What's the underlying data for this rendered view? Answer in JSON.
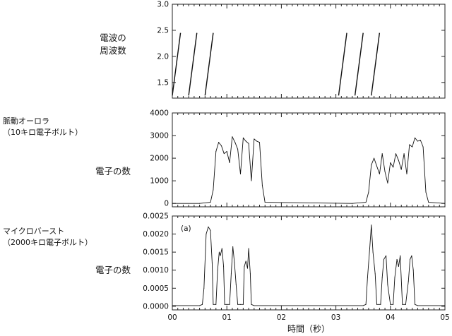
{
  "chart_data": [
    {
      "type": "line",
      "side_label_lines": [
        "電波の",
        "周波数"
      ],
      "ylim": [
        1.2,
        3.0
      ],
      "yticks": [
        1.5,
        2.0,
        2.5,
        3.0
      ],
      "ytick_labels": [
        "1.5",
        "2.0",
        "2.5",
        "3.0"
      ],
      "xlim": [
        0,
        5
      ],
      "segments": [
        {
          "x": [
            0.0,
            0.15
          ],
          "y": [
            1.25,
            2.45
          ]
        },
        {
          "x": [
            0.3,
            0.45
          ],
          "y": [
            1.25,
            2.45
          ]
        },
        {
          "x": [
            0.6,
            0.75
          ],
          "y": [
            1.25,
            2.45
          ]
        },
        {
          "x": [
            3.05,
            3.2
          ],
          "y": [
            1.25,
            2.45
          ]
        },
        {
          "x": [
            3.35,
            3.5
          ],
          "y": [
            1.25,
            2.45
          ]
        },
        {
          "x": [
            3.65,
            3.8
          ],
          "y": [
            1.25,
            2.45
          ]
        }
      ]
    },
    {
      "type": "line",
      "title_lines": [
        "脈動オーロラ",
        "（10キロ電子ボルト）"
      ],
      "side_label": "電子の数",
      "ylim": [
        -150,
        4000
      ],
      "yticks": [
        0,
        1000,
        2000,
        3000,
        4000
      ],
      "ytick_labels": [
        "0",
        "1000",
        "2000",
        "3000",
        "4000"
      ],
      "xlim": [
        0,
        5
      ],
      "x": [
        0.0,
        0.5,
        0.7,
        0.75,
        0.8,
        0.85,
        0.9,
        0.95,
        1.0,
        1.05,
        1.1,
        1.15,
        1.2,
        1.25,
        1.3,
        1.35,
        1.4,
        1.45,
        1.5,
        1.55,
        1.6,
        1.65,
        1.7,
        3.3,
        3.55,
        3.6,
        3.65,
        3.7,
        3.75,
        3.8,
        3.85,
        3.9,
        3.95,
        4.0,
        4.05,
        4.1,
        4.15,
        4.2,
        4.25,
        4.3,
        4.35,
        4.4,
        4.45,
        4.5,
        4.55,
        4.6,
        4.65,
        4.7,
        5.0
      ],
      "y": [
        0,
        0,
        50,
        600,
        2300,
        2700,
        2550,
        2200,
        2300,
        1800,
        2950,
        2700,
        2400,
        1300,
        2900,
        2750,
        2650,
        1000,
        2850,
        2750,
        2700,
        800,
        50,
        0,
        50,
        500,
        1700,
        2000,
        1650,
        1300,
        2200,
        1400,
        900,
        1800,
        1600,
        2200,
        1900,
        1500,
        2200,
        1300,
        2600,
        2500,
        2900,
        2750,
        2800,
        2500,
        500,
        50,
        0
      ]
    },
    {
      "type": "line",
      "title_lines": [
        "マイクロバースト",
        "（2000キロ電子ボルト）"
      ],
      "side_label": "電子の数",
      "annotation": "(a)",
      "ylim": [
        -0.0001,
        0.0025
      ],
      "yticks": [
        0.0,
        0.0005,
        0.001,
        0.0015,
        0.002,
        0.0025
      ],
      "ytick_labels": [
        "0.0000",
        "0.0005",
        "0.0010",
        "0.0015",
        "0.0020",
        "0.0025"
      ],
      "xlim": [
        0,
        5
      ],
      "x": [
        0.0,
        0.5,
        0.55,
        0.58,
        0.62,
        0.66,
        0.7,
        0.73,
        0.75,
        0.8,
        0.83,
        0.86,
        0.88,
        0.91,
        0.94,
        0.96,
        1.0,
        1.05,
        1.08,
        1.11,
        1.14,
        1.17,
        1.2,
        1.25,
        1.3,
        1.32,
        1.35,
        1.38,
        1.4,
        1.43,
        1.45,
        1.5,
        3.5,
        3.55,
        3.58,
        3.62,
        3.65,
        3.68,
        3.72,
        3.75,
        3.82,
        3.85,
        3.88,
        3.92,
        3.95,
        4.0,
        4.05,
        4.08,
        4.12,
        4.15,
        4.18,
        4.22,
        4.28,
        4.33,
        4.36,
        4.39,
        4.42,
        4.45,
        4.5,
        5.0
      ],
      "y": [
        2e-05,
        2e-05,
        5e-05,
        0.0005,
        0.002,
        0.0022,
        0.0021,
        0.0012,
        5e-05,
        5e-05,
        0.001,
        0.0015,
        0.0014,
        0.0016,
        0.0011,
        5e-05,
        5e-05,
        5e-05,
        0.0009,
        0.00165,
        0.0012,
        0.0006,
        5e-05,
        5e-05,
        5e-05,
        0.0011,
        0.00125,
        0.00105,
        0.0016,
        0.0009,
        5e-05,
        2e-05,
        2e-05,
        5e-05,
        0.0008,
        0.0016,
        0.00225,
        0.0015,
        0.0009,
        5e-05,
        5e-05,
        0.0008,
        0.0013,
        0.0014,
        0.0006,
        5e-05,
        5e-05,
        0.0008,
        0.0013,
        0.0011,
        0.0014,
        5e-05,
        5e-05,
        0.0007,
        0.0013,
        0.0014,
        0.001,
        5e-05,
        2e-05,
        2e-05
      ]
    }
  ],
  "x_axis": {
    "ticks": [
      0,
      1,
      2,
      3,
      4,
      5
    ],
    "tick_labels": [
      "00",
      "01",
      "02",
      "03",
      "04",
      "05"
    ],
    "label": "時間（秒）"
  }
}
